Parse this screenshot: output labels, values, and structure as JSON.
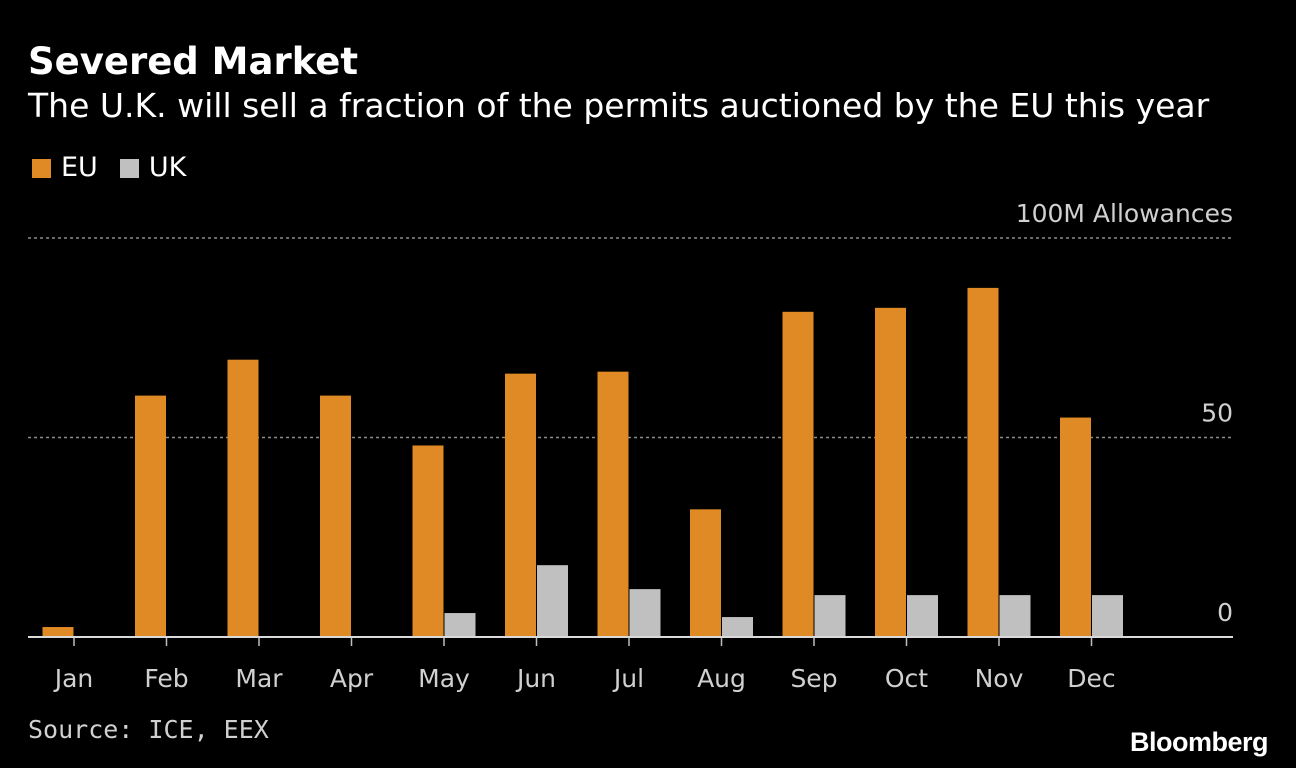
{
  "header": {
    "title": "Severed Market",
    "subtitle": "The U.K. will sell a fraction of the permits auctioned by the EU this year"
  },
  "legend": {
    "items": [
      {
        "label": "EU",
        "color": "#e08a25"
      },
      {
        "label": "UK",
        "color": "#c0c0c0"
      }
    ]
  },
  "chart_data": {
    "type": "bar",
    "title": "Severed Market",
    "subtitle": "The U.K. will sell a fraction of the permits auctioned by the EU this year",
    "categories": [
      "Jan",
      "Feb",
      "Mar",
      "Apr",
      "May",
      "Jun",
      "Jul",
      "Aug",
      "Sep",
      "Oct",
      "Nov",
      "Dec"
    ],
    "series": [
      {
        "name": "EU",
        "color": "#e08a25",
        "values": [
          2.5,
          60.5,
          69.5,
          60.5,
          48,
          66,
          66.5,
          32,
          81.5,
          82.5,
          87.5,
          55
        ]
      },
      {
        "name": "UK",
        "color": "#c0c0c0",
        "values": [
          0,
          0,
          0,
          0,
          6,
          18,
          12,
          5,
          10.5,
          10.5,
          10.5,
          10.5
        ]
      }
    ],
    "ylim": [
      0,
      100
    ],
    "yticks": [
      0,
      50,
      100
    ],
    "ytick_labels": [
      "0",
      "50",
      "100M Allowances"
    ],
    "ylabel": "Allowances",
    "xlabel": "",
    "grid": true,
    "legend_position": "top-left"
  },
  "footer": {
    "source": "Source: ICE, EEX",
    "brand": "Bloomberg"
  }
}
